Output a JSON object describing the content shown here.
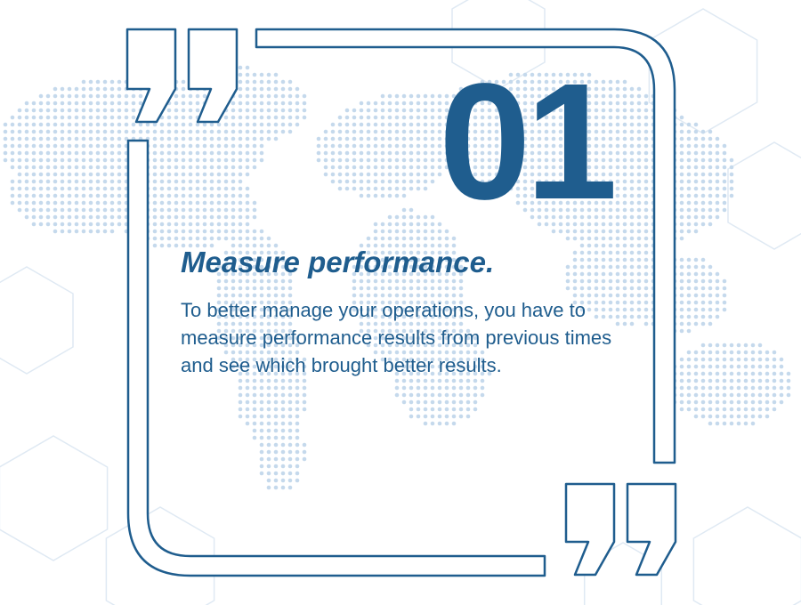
{
  "slide": {
    "number": "01",
    "title": "Measure performance.",
    "body": "To better manage your operations, you have to measure performance results from previous times and see which brought better results."
  },
  "colors": {
    "primary": "#1f5d8e",
    "map_dots": "#c5d9ec",
    "hex_lines": "#dfe9f3",
    "background": "#ffffff"
  },
  "icons": {
    "open_quote": "open-quote-icon",
    "close_quote": "close-quote-icon"
  }
}
